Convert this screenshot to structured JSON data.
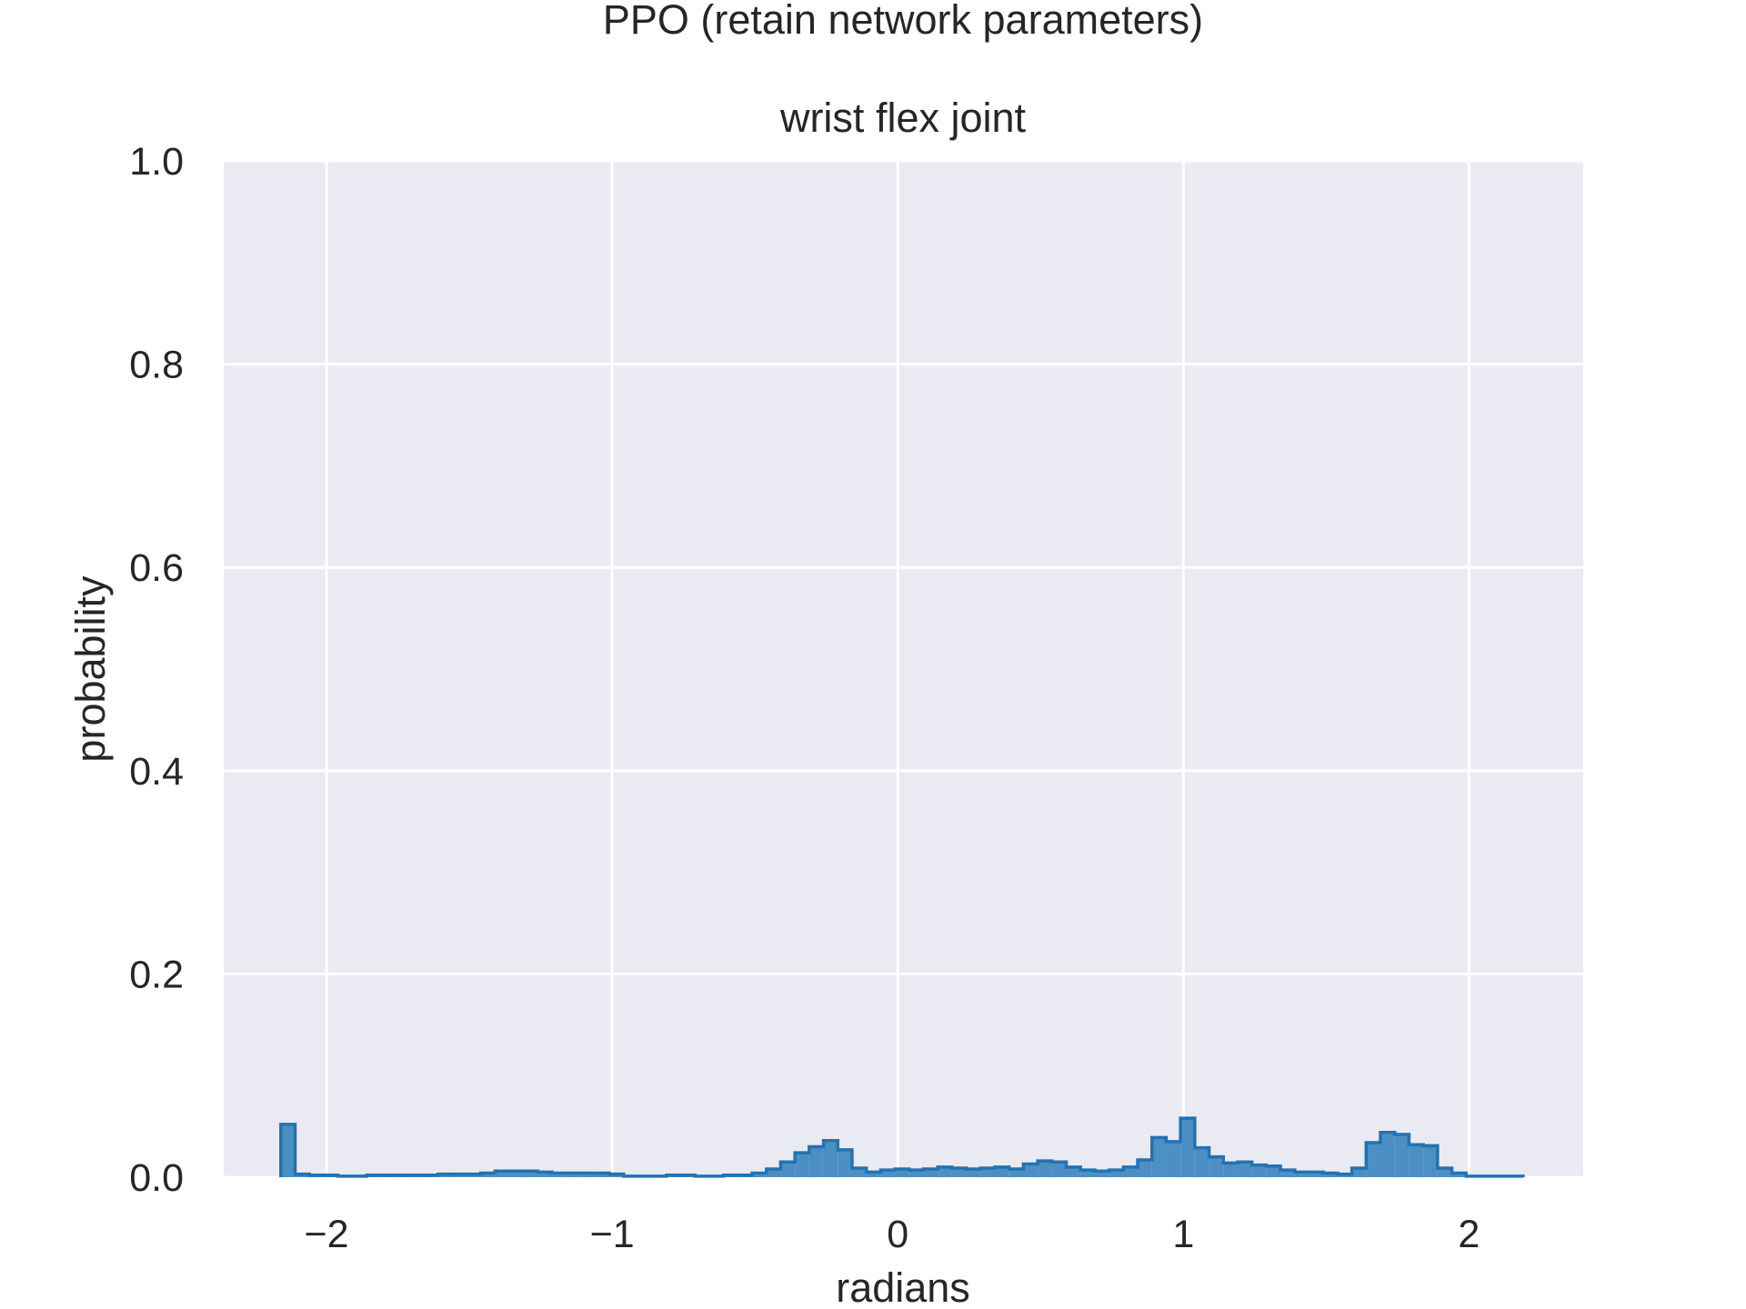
{
  "chart_data": {
    "type": "histogram",
    "title": "PPO (retain network parameters)",
    "subtitle": "wrist flex joint",
    "xlabel": "radians",
    "ylabel": "probability",
    "xlim": [
      -2.36,
      2.4
    ],
    "ylim": [
      0,
      1.0
    ],
    "x_ticks": [
      -2,
      -1,
      0,
      1,
      2
    ],
    "x_tick_labels": [
      "−2",
      "−1",
      "0",
      "1",
      "2"
    ],
    "y_ticks": [
      0.0,
      0.2,
      0.4,
      0.6,
      0.8,
      1.0
    ],
    "y_tick_labels": [
      "0.0",
      "0.2",
      "0.4",
      "0.6",
      "0.8",
      "1.0"
    ],
    "grid": true,
    "colors": {
      "plot_background": "#eaeaf2",
      "grid": "#ffffff",
      "fill": "#4c8fc3",
      "edge": "#2472b0"
    },
    "bin_start": -2.16,
    "bin_width": 0.05,
    "values": [
      0.052,
      0.003,
      0.002,
      0.002,
      0.001,
      0.001,
      0.002,
      0.002,
      0.002,
      0.002,
      0.002,
      0.003,
      0.003,
      0.003,
      0.004,
      0.006,
      0.006,
      0.006,
      0.005,
      0.004,
      0.004,
      0.004,
      0.004,
      0.003,
      0.001,
      0.001,
      0.001,
      0.002,
      0.002,
      0.001,
      0.001,
      0.002,
      0.002,
      0.004,
      0.008,
      0.015,
      0.024,
      0.03,
      0.036,
      0.027,
      0.009,
      0.005,
      0.007,
      0.008,
      0.007,
      0.008,
      0.01,
      0.009,
      0.008,
      0.009,
      0.01,
      0.008,
      0.013,
      0.016,
      0.015,
      0.01,
      0.007,
      0.006,
      0.007,
      0.01,
      0.017,
      0.039,
      0.035,
      0.058,
      0.029,
      0.02,
      0.014,
      0.015,
      0.012,
      0.011,
      0.007,
      0.005,
      0.005,
      0.004,
      0.003,
      0.009,
      0.034,
      0.044,
      0.042,
      0.032,
      0.031,
      0.009,
      0.004,
      0.001,
      0.001,
      0.001,
      0.001
    ]
  }
}
